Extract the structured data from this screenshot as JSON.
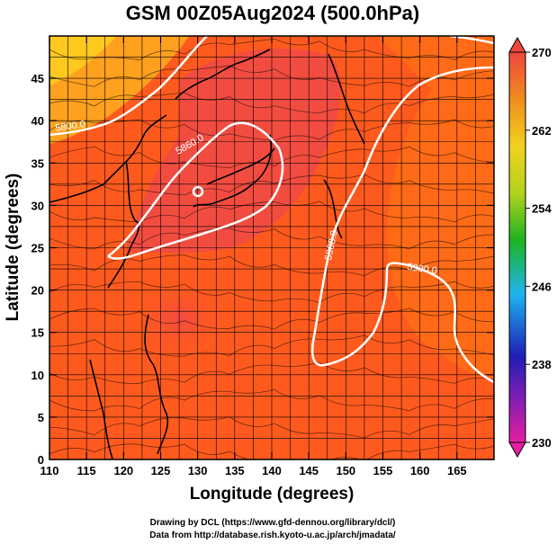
{
  "title": "GSM 00Z05Aug2024 (500.0hPa)",
  "xlabel": "Longitude (degrees)",
  "ylabel": "Latitude  (degrees)",
  "x_ticks": [
    "110",
    "115",
    "120",
    "125",
    "130",
    "135",
    "140",
    "145",
    "150",
    "155",
    "160",
    "165"
  ],
  "y_ticks": [
    "0",
    "5",
    "10",
    "15",
    "20",
    "25",
    "30",
    "35",
    "40",
    "45"
  ],
  "colorbar": {
    "ticks": [
      "230",
      "238",
      "246",
      "254",
      "262",
      "270"
    ],
    "colors": [
      "#e61ea0",
      "#1e1ea8",
      "#1eb4f0",
      "#1eb41e",
      "#f0d21e",
      "#f0501e"
    ]
  },
  "contour_labels": [
    "5800.0",
    "5860.0",
    "5900.0",
    "5900.0"
  ],
  "credits": {
    "line1": "Drawing by DCL (https://www.gfd-dennou.org/library/dcl/)",
    "line2": "Data from http://database.rish.kyoto-u.ac.jp/arch/jmadata/"
  },
  "map_data": {
    "lon_range": [
      110,
      170
    ],
    "lat_range": [
      0,
      50
    ],
    "field_colors": {
      "warm": "#ff6a14",
      "warmer": "#ff4a1a",
      "hot": "#f24046",
      "cool": "#ffb41e"
    },
    "contour_color": "#ffffff"
  }
}
